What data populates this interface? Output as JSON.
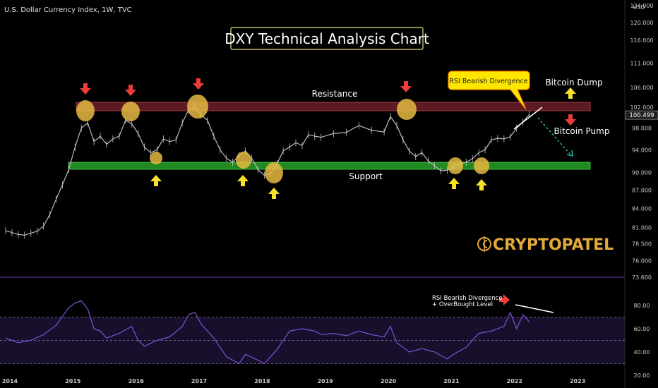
{
  "header": {
    "symbol": "U.S. Dollar Currency Index, 1W, TVC"
  },
  "chart_data": [
    {
      "type": "line",
      "panel": "price",
      "title": "DXY Technical Analysis Chart",
      "ylabel": "USD",
      "scale": "log",
      "ylim": [
        73.6,
        124.0
      ],
      "price_ticks": [
        "124.000",
        "120.000",
        "116.000",
        "111.000",
        "106.000",
        "102.000",
        "98.000",
        "94.000",
        "90.000",
        "87.000",
        "84.000",
        "81.000",
        "78.500",
        "76.000",
        "73.600"
      ],
      "x_ticks": [
        "2014",
        "2015",
        "2016",
        "2017",
        "2018",
        "2019",
        "2020",
        "2021",
        "2022",
        "2023"
      ],
      "xlim": [
        2014.0,
        2023.2
      ],
      "last_price": "100.499",
      "series": [
        {
          "x": [
            2014.0,
            2014.1,
            2014.2,
            2014.3,
            2014.4,
            2014.5,
            2014.6,
            2014.7,
            2014.8,
            2014.9,
            2015.0,
            2015.1,
            2015.2,
            2015.3,
            2015.4,
            2015.5,
            2015.6,
            2015.7,
            2015.8,
            2015.9,
            2016.0,
            2016.1,
            2016.2,
            2016.3,
            2016.4,
            2016.5,
            2016.6,
            2016.7,
            2016.8,
            2016.9,
            2017.0,
            2017.1,
            2017.2,
            2017.3,
            2017.4,
            2017.5,
            2017.6,
            2017.7,
            2017.8,
            2017.9,
            2018.0,
            2018.1,
            2018.2,
            2018.3,
            2018.4,
            2018.5,
            2018.6,
            2018.7,
            2018.8,
            2018.9,
            2019.0,
            2019.2,
            2019.4,
            2019.6,
            2019.8,
            2020.0,
            2020.1,
            2020.2,
            2020.3,
            2020.4,
            2020.5,
            2020.6,
            2020.7,
            2020.8,
            2020.9,
            2021.0,
            2021.1,
            2021.2,
            2021.3,
            2021.4,
            2021.5,
            2021.6,
            2021.7,
            2021.8,
            2021.9,
            2022.0,
            2022.1,
            2022.2,
            2022.3
          ],
          "y": [
            80.5,
            80.2,
            79.9,
            79.8,
            80.1,
            80.4,
            81.2,
            83.0,
            85.5,
            87.9,
            90.5,
            94.5,
            98.0,
            99.0,
            95.5,
            96.5,
            95.0,
            96.0,
            96.5,
            99.5,
            98.8,
            97.0,
            94.5,
            93.5,
            94.0,
            96.0,
            95.5,
            95.8,
            99.0,
            101.5,
            102.0,
            100.5,
            99.5,
            96.5,
            94.0,
            92.5,
            91.8,
            93.0,
            93.8,
            92.5,
            90.5,
            89.5,
            89.8,
            91.5,
            93.8,
            94.5,
            95.3,
            94.8,
            96.8,
            96.5,
            96.3,
            97.0,
            97.2,
            98.5,
            97.6,
            97.3,
            100.2,
            98.5,
            95.8,
            93.8,
            92.8,
            93.5,
            92.0,
            91.2,
            90.3,
            90.4,
            91.0,
            91.5,
            91.8,
            92.4,
            93.5,
            94.0,
            95.8,
            96.1,
            96.0,
            96.4,
            98.0,
            99.2,
            100.6
          ]
        }
      ],
      "annotations": {
        "resistance": "Resistance",
        "support": "Support",
        "rsi_callout": "RSI Bearish Divergence",
        "bitcoin_dump": "Bitcoin Dump",
        "bitcoin_pump": "Bitcoin Pump"
      }
    },
    {
      "type": "line",
      "panel": "rsi",
      "ylim": [
        20,
        100
      ],
      "y_ticks": [
        "80.00",
        "60.00",
        "40.00",
        "20.00"
      ],
      "levels": [
        70,
        50,
        30
      ],
      "series": [
        {
          "x": [
            2014.0,
            2014.2,
            2014.4,
            2014.6,
            2014.8,
            2015.0,
            2015.1,
            2015.2,
            2015.3,
            2015.4,
            2015.5,
            2015.6,
            2015.8,
            2016.0,
            2016.1,
            2016.2,
            2016.4,
            2016.6,
            2016.8,
            2016.9,
            2017.0,
            2017.1,
            2017.3,
            2017.5,
            2017.7,
            2017.8,
            2018.0,
            2018.1,
            2018.3,
            2018.5,
            2018.7,
            2018.9,
            2019.0,
            2019.2,
            2019.4,
            2019.6,
            2019.8,
            2020.0,
            2020.1,
            2020.2,
            2020.4,
            2020.6,
            2020.8,
            2021.0,
            2021.1,
            2021.3,
            2021.5,
            2021.7,
            2021.9,
            2022.0,
            2022.1,
            2022.2,
            2022.3
          ],
          "y": [
            52,
            48,
            50,
            55,
            63,
            78,
            82,
            84,
            77,
            60,
            58,
            52,
            56,
            62,
            50,
            45,
            50,
            53,
            62,
            72,
            74,
            64,
            52,
            36,
            30,
            38,
            33,
            30,
            42,
            58,
            60,
            58,
            55,
            56,
            54,
            58,
            55,
            53,
            62,
            48,
            40,
            43,
            40,
            34,
            38,
            44,
            56,
            58,
            62,
            74,
            60,
            72,
            66
          ]
        }
      ],
      "annotations": {
        "rsi_note_line1": "RSI Bearish Divergence",
        "rsi_note_line2": "+ OverBought Level"
      }
    }
  ],
  "watermark": {
    "text": "CRYPTOPATEL"
  },
  "colors": {
    "background": "#000000",
    "candle": "#c8c8c8",
    "resistance_band": "#5a1c22",
    "support_band": "#1f8a1f",
    "highlight": "#e5b842",
    "arrow_down": "#ee3b3b",
    "arrow_up": "#f7e02a",
    "rsi_line": "#7b55d4",
    "rsi_band": "#1a1230",
    "callout": "#ffe600",
    "brand_gold": "#e3a93a",
    "dashed_projection": "#2cc8b6"
  }
}
